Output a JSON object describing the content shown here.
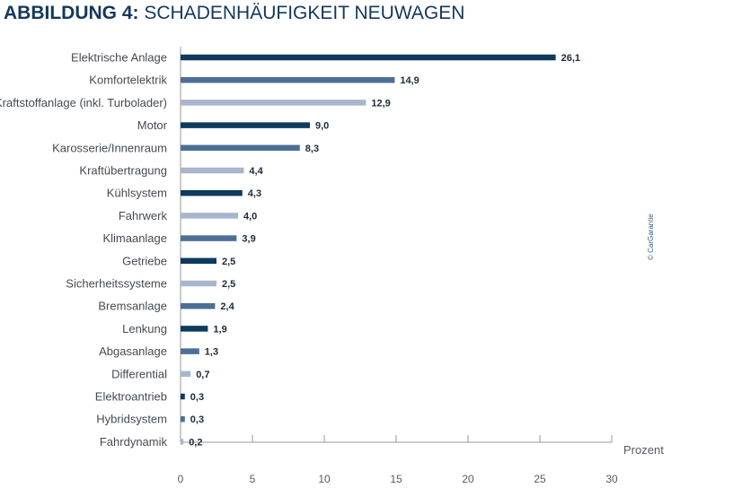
{
  "title": {
    "prefix": "ABBILDUNG 4:",
    "text": "SCHADENHÄUFIGKEIT NEUWAGEN"
  },
  "credit": "© CarGarantie",
  "colors": {
    "dark": "#0f3a5f",
    "medium": "#4d6f96",
    "light": "#a8b5cc",
    "title": "#14385a"
  },
  "chart_data": {
    "type": "bar",
    "orientation": "horizontal",
    "categories": [
      "Elektrische Anlage",
      "Komfortelektrik",
      "Kraftstoffanlage (inkl. Turbolader)",
      "Motor",
      "Karosserie/Innenraum",
      "Kraftübertragung",
      "Kühlsystem",
      "Fahrwerk",
      "Klimaanlage",
      "Getriebe",
      "Sicherheitssysteme",
      "Bremsanlage",
      "Lenkung",
      "Abgasanlage",
      "Differential",
      "Elektroantrieb",
      "Hybridsystem",
      "Fahrdynamik"
    ],
    "values": [
      26.1,
      14.9,
      12.9,
      9.0,
      8.3,
      4.4,
      4.3,
      4.0,
      3.9,
      2.5,
      2.5,
      2.4,
      1.9,
      1.3,
      0.7,
      0.3,
      0.3,
      0.2
    ],
    "value_labels": [
      "26,1",
      "14,9",
      "12,9",
      "9,0",
      "8,3",
      "4,4",
      "4,3",
      "4,0",
      "3,9",
      "2,5",
      "2,5",
      "2,4",
      "1,9",
      "1,3",
      "0,7",
      "0,3",
      "0,3",
      "0,2"
    ],
    "bar_colors": [
      "dark",
      "medium",
      "light",
      "dark",
      "medium",
      "light",
      "dark",
      "light",
      "medium",
      "dark",
      "light",
      "medium",
      "dark",
      "medium",
      "light",
      "dark",
      "medium",
      "light"
    ],
    "xlabel": "Prozent",
    "xlim": [
      0,
      30
    ],
    "xticks": [
      0,
      5,
      10,
      15,
      20,
      25,
      30
    ],
    "xtick_labels": [
      "0",
      "5",
      "10",
      "15",
      "20",
      "25",
      "30"
    ],
    "grid": false
  }
}
